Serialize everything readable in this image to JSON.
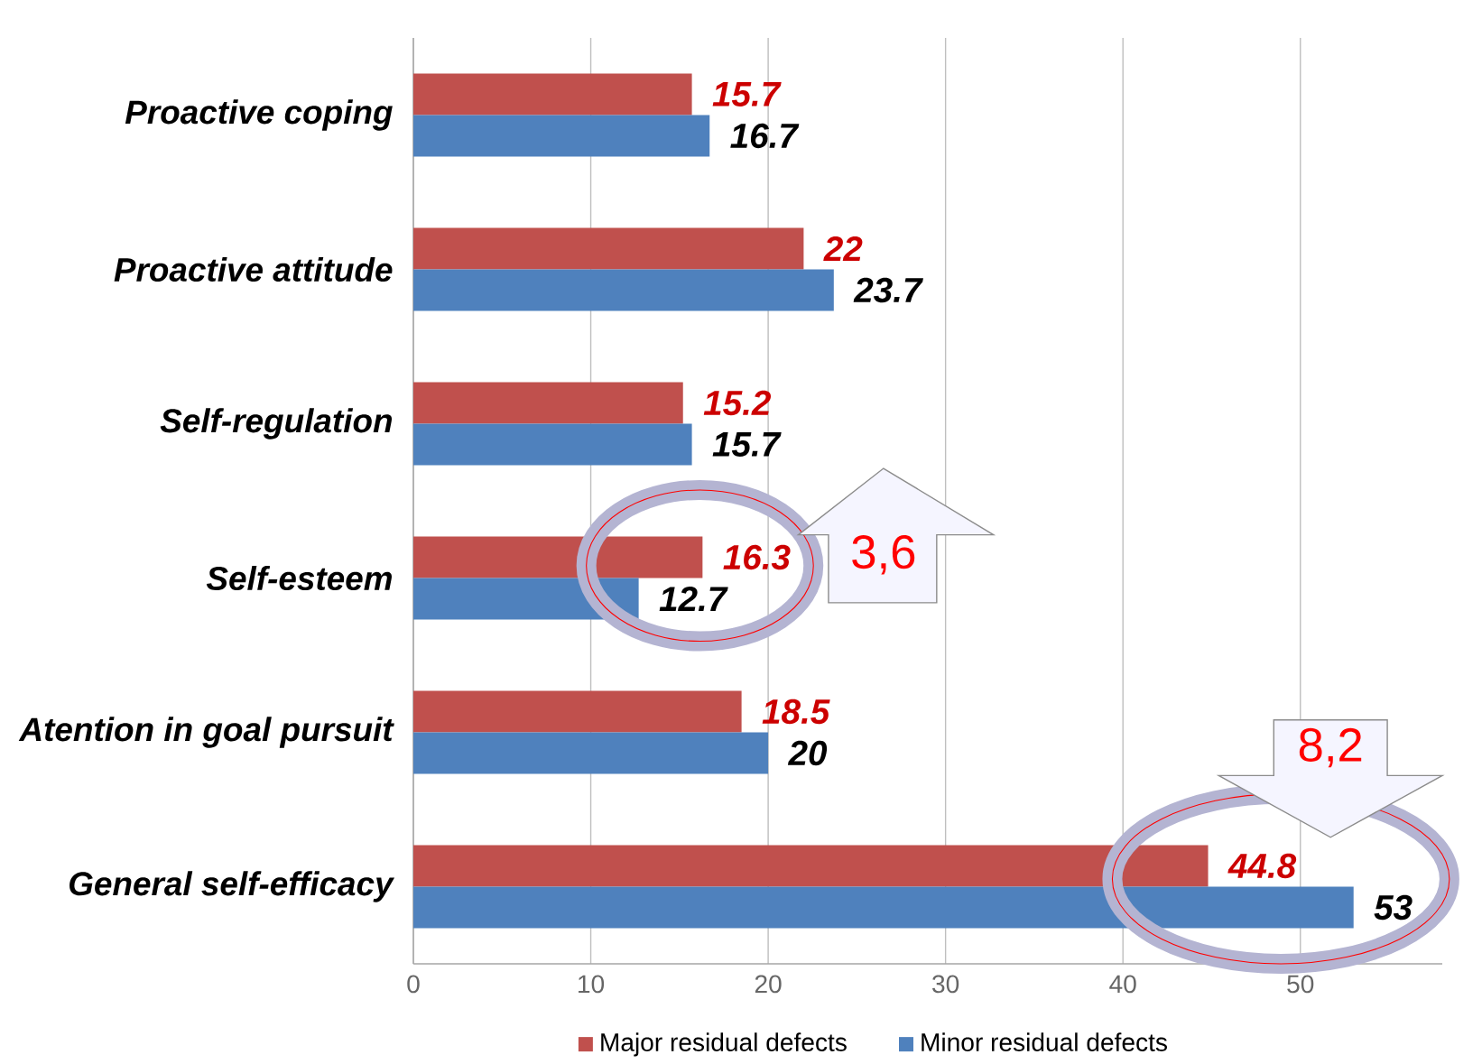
{
  "chart_data": {
    "type": "bar",
    "orientation": "horizontal",
    "categories": [
      "Proactive coping",
      "Proactive attitude",
      "Self-regulation",
      "Self-esteem",
      "Atention in goal pursuit",
      "General self-efficacy"
    ],
    "series": [
      {
        "name": "Major residual defects",
        "color": "#c0504d",
        "values": [
          15.7,
          22,
          15.2,
          16.3,
          18.5,
          44.8
        ]
      },
      {
        "name": "Minor residual defects",
        "color": "#4f81bd",
        "values": [
          16.7,
          23.7,
          15.7,
          12.7,
          20,
          53
        ]
      }
    ],
    "xlim": [
      0,
      58
    ],
    "xticks": [
      0,
      10,
      20,
      30,
      40,
      50
    ],
    "grid": "x",
    "legend": "bottom",
    "data_labels": true,
    "annotations": [
      "3,6",
      "8,2"
    ]
  }
}
